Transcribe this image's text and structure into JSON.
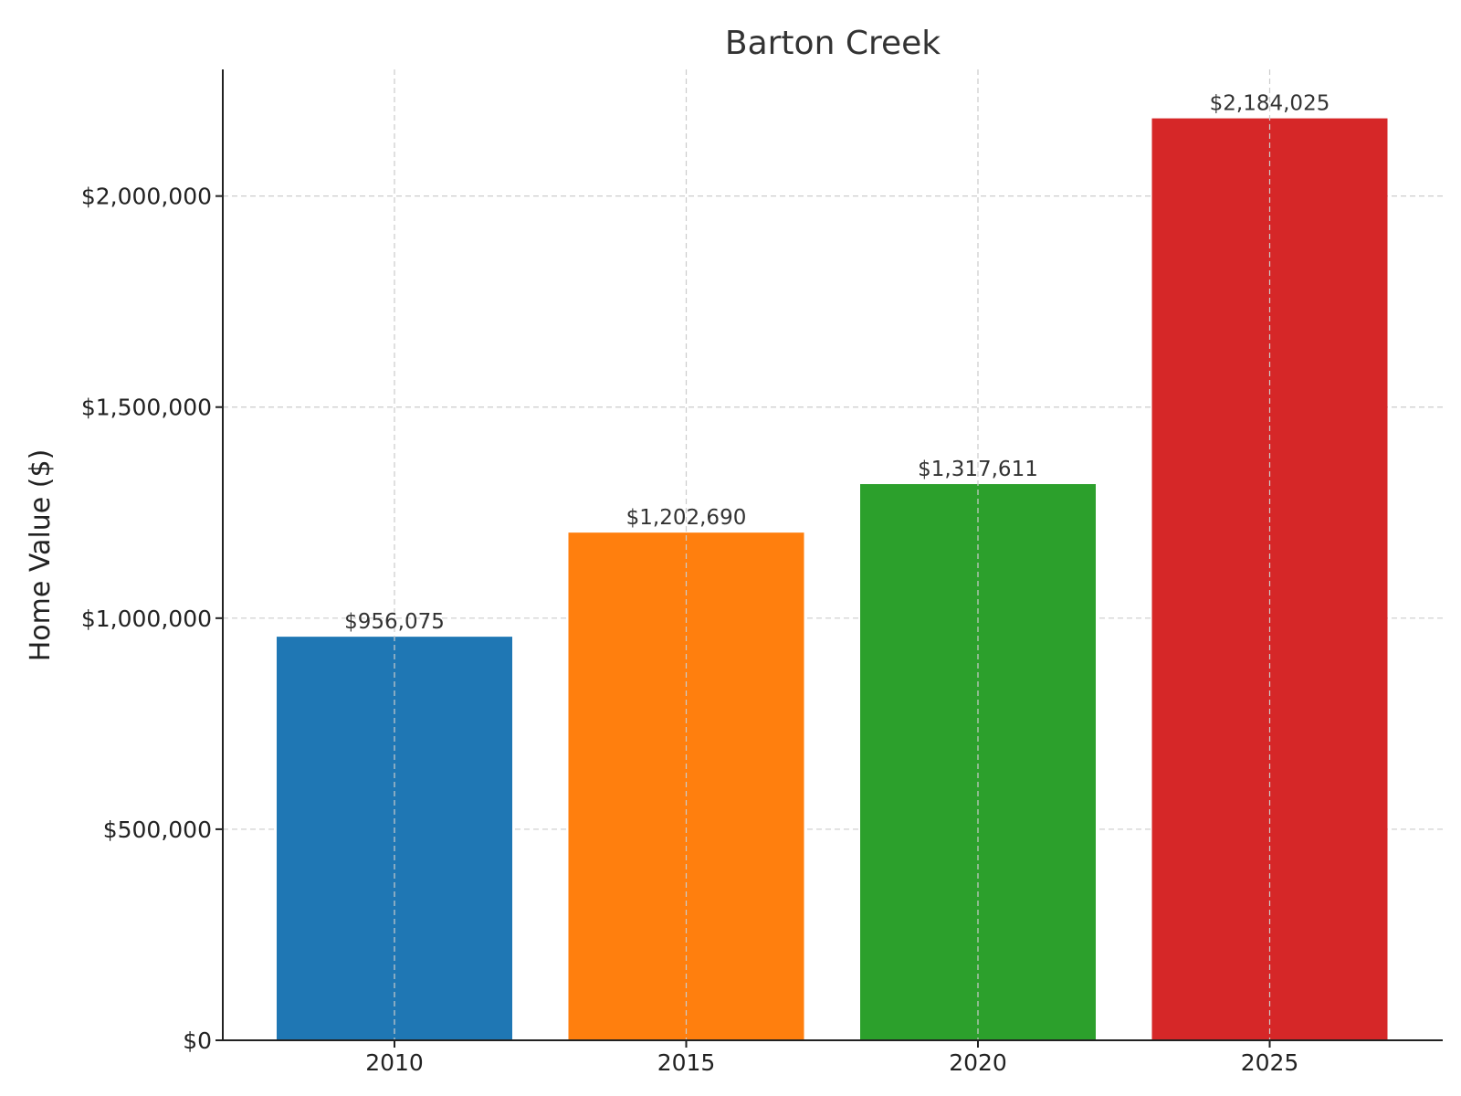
{
  "chart_data": {
    "type": "bar",
    "title": "Barton Creek",
    "xlabel": "",
    "ylabel": "Home Value ($)",
    "categories": [
      "2010",
      "2015",
      "2020",
      "2025"
    ],
    "values": [
      956075,
      1202690,
      1317611,
      2184025
    ],
    "value_labels": [
      "$956,075",
      "$1,202,690",
      "$1,317,611",
      "$2,184,025"
    ],
    "colors": [
      "#1f77b4",
      "#ff7f0e",
      "#2ca02c",
      "#d62728"
    ],
    "ylim": [
      0,
      2300000
    ],
    "yticks": [
      0,
      500000,
      1000000,
      1500000,
      2000000
    ],
    "ytick_labels": [
      "$0",
      "$500,000",
      "$1,000,000",
      "$1,500,000",
      "$2,000,000"
    ],
    "grid": true,
    "grid_style": "dashed"
  }
}
